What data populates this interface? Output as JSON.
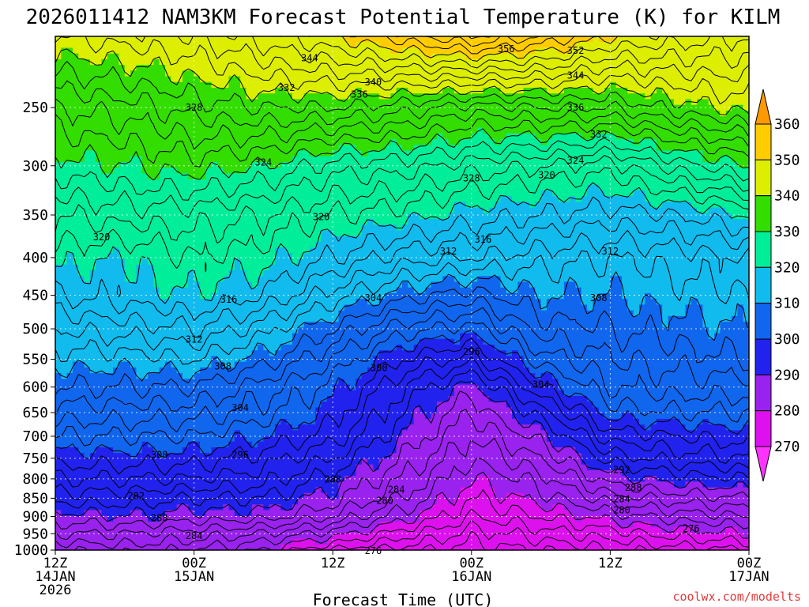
{
  "colors": {
    "bands": [
      {
        "min": 260,
        "max": 270,
        "color": "#ff33ff"
      },
      {
        "min": 270,
        "max": 280,
        "color": "#dd11ee"
      },
      {
        "min": 280,
        "max": 290,
        "color": "#9922ee"
      },
      {
        "min": 290,
        "max": 300,
        "color": "#2222ee"
      },
      {
        "min": 300,
        "max": 310,
        "color": "#1166ee"
      },
      {
        "min": 310,
        "max": 320,
        "color": "#11bbee"
      },
      {
        "min": 320,
        "max": 330,
        "color": "#00ee99"
      },
      {
        "min": 330,
        "max": 340,
        "color": "#33dd00"
      },
      {
        "min": 340,
        "max": 350,
        "color": "#ddee00"
      },
      {
        "min": 350,
        "max": 360,
        "color": "#ffcc00"
      },
      {
        "min": 360,
        "max": 370,
        "color": "#ff9900"
      }
    ],
    "ground": "#994f2a",
    "credit": "#e23a3a"
  },
  "chart_data": {
    "type": "heatmap",
    "title": "2026011412 NAM3KM Forecast Potential Temperature (K) for KILM",
    "xlabel": "Forecast Time (UTC)",
    "ylabel": "",
    "x_ticks": [
      {
        "hour": 0,
        "lines": [
          "12Z",
          "14JAN",
          "2026"
        ]
      },
      {
        "hour": 12,
        "lines": [
          "00Z",
          "15JAN"
        ]
      },
      {
        "hour": 24,
        "lines": [
          "12Z"
        ]
      },
      {
        "hour": 36,
        "lines": [
          "00Z",
          "16JAN"
        ]
      },
      {
        "hour": 48,
        "lines": [
          "12Z"
        ]
      },
      {
        "hour": 60,
        "lines": [
          "00Z",
          "17JAN"
        ]
      }
    ],
    "x_range": [
      0,
      60
    ],
    "y_ticks": [
      250,
      300,
      350,
      400,
      450,
      500,
      550,
      600,
      650,
      700,
      750,
      800,
      850,
      900,
      950,
      1000
    ],
    "y_range_hpa": [
      200,
      1000
    ],
    "y_scale": "log-pressure",
    "colorbar_ticks": [
      270,
      280,
      290,
      300,
      310,
      320,
      330,
      340,
      350,
      360
    ],
    "contour_interval": 2,
    "sounding_key": {
      "pressures": [
        1000,
        950,
        900,
        850,
        800,
        750,
        700,
        650,
        600,
        550,
        500,
        450,
        400,
        350,
        300,
        250,
        200
      ],
      "times": [
        0,
        6,
        12,
        18,
        24,
        30,
        36,
        42,
        48,
        54,
        60
      ],
      "theta": [
        [
          282,
          286,
          289,
          293,
          296,
          299,
          302,
          305,
          308,
          311,
          314,
          318,
          321,
          324,
          329,
          334,
          342
        ],
        [
          283,
          286,
          290,
          293,
          296,
          299,
          302,
          305,
          308,
          311,
          315,
          319,
          320,
          325,
          330,
          335,
          343
        ],
        [
          282,
          285,
          289,
          292,
          296,
          299,
          302,
          305,
          308,
          312,
          316,
          320,
          322,
          325,
          331,
          337,
          344
        ],
        [
          280,
          284,
          289,
          292,
          295,
          297,
          300,
          303,
          305,
          309,
          313,
          318,
          321,
          324,
          330,
          338,
          347
        ],
        [
          276,
          281,
          286,
          289,
          291,
          294,
          297,
          299,
          301,
          304,
          308,
          313,
          318,
          322,
          327,
          338,
          350
        ],
        [
          273,
          277,
          281,
          284,
          286,
          288,
          290,
          292,
          294,
          298,
          303,
          309,
          315,
          321,
          327,
          337,
          353
        ],
        [
          271,
          273,
          276,
          278,
          280,
          282,
          284,
          286,
          289,
          295,
          301,
          307,
          314,
          319,
          325,
          335,
          356
        ],
        [
          272,
          275,
          278,
          281,
          283,
          286,
          289,
          293,
          298,
          303,
          307,
          310,
          313,
          318,
          324,
          336,
          354
        ],
        [
          274,
          277,
          281,
          285,
          289,
          293,
          297,
          301,
          304,
          306,
          308,
          310,
          312,
          317,
          323,
          336,
          350
        ],
        [
          275,
          279,
          283,
          287,
          291,
          295,
          298,
          302,
          305,
          307,
          309,
          311,
          313,
          318,
          327,
          339,
          349
        ],
        [
          276,
          280,
          284,
          288,
          292,
          296,
          299,
          302,
          305,
          308,
          310,
          312,
          314,
          320,
          330,
          341,
          348
        ]
      ]
    },
    "contour_labels": [
      {
        "value": "356",
        "hour": 39.0,
        "p": 208
      },
      {
        "value": "352",
        "hour": 45.0,
        "p": 209
      },
      {
        "value": "344",
        "hour": 22.0,
        "p": 214
      },
      {
        "value": "344",
        "hour": 45.0,
        "p": 226
      },
      {
        "value": "340",
        "hour": 27.5,
        "p": 231
      },
      {
        "value": "336",
        "hour": 26.3,
        "p": 240
      },
      {
        "value": "336",
        "hour": 45.0,
        "p": 250
      },
      {
        "value": "332",
        "hour": 20.0,
        "p": 235
      },
      {
        "value": "332",
        "hour": 47.0,
        "p": 272
      },
      {
        "value": "328",
        "hour": 12.0,
        "p": 250
      },
      {
        "value": "328",
        "hour": 36.0,
        "p": 312
      },
      {
        "value": "324",
        "hour": 18.0,
        "p": 297
      },
      {
        "value": "324",
        "hour": 45.0,
        "p": 295
      },
      {
        "value": "320",
        "hour": 4.0,
        "p": 375
      },
      {
        "value": "320",
        "hour": 23.0,
        "p": 352
      },
      {
        "value": "320",
        "hour": 42.5,
        "p": 309
      },
      {
        "value": "316",
        "hour": 37.0,
        "p": 378
      },
      {
        "value": "316",
        "hour": 15.0,
        "p": 456
      },
      {
        "value": "312",
        "hour": 34.0,
        "p": 392
      },
      {
        "value": "312",
        "hour": 48.0,
        "p": 392
      },
      {
        "value": "312",
        "hour": 12.0,
        "p": 517
      },
      {
        "value": "308",
        "hour": 14.5,
        "p": 562
      },
      {
        "value": "308",
        "hour": 47.0,
        "p": 454
      },
      {
        "value": "304",
        "hour": 27.5,
        "p": 454
      },
      {
        "value": "304",
        "hour": 16.0,
        "p": 640
      },
      {
        "value": "304",
        "hour": 42.0,
        "p": 595
      },
      {
        "value": "300",
        "hour": 28.0,
        "p": 565
      },
      {
        "value": "300",
        "hour": 9.0,
        "p": 742
      },
      {
        "value": "296",
        "hour": 36.0,
        "p": 537
      },
      {
        "value": "296",
        "hour": 16.0,
        "p": 742
      },
      {
        "value": "292",
        "hour": 49.0,
        "p": 778
      },
      {
        "value": "292",
        "hour": 7.0,
        "p": 844
      },
      {
        "value": "288",
        "hour": 24.0,
        "p": 801
      },
      {
        "value": "288",
        "hour": 50.0,
        "p": 822
      },
      {
        "value": "288",
        "hour": 9.0,
        "p": 905
      },
      {
        "value": "284",
        "hour": 29.5,
        "p": 827
      },
      {
        "value": "284",
        "hour": 49.0,
        "p": 852
      },
      {
        "value": "284",
        "hour": 12.0,
        "p": 957
      },
      {
        "value": "280",
        "hour": 28.5,
        "p": 857
      },
      {
        "value": "280",
        "hour": 49.0,
        "p": 882
      },
      {
        "value": "276",
        "hour": 27.5,
        "p": 1002
      },
      {
        "value": "276",
        "hour": 55.0,
        "p": 935
      }
    ]
  },
  "credit": "coolwx.com/modelts"
}
